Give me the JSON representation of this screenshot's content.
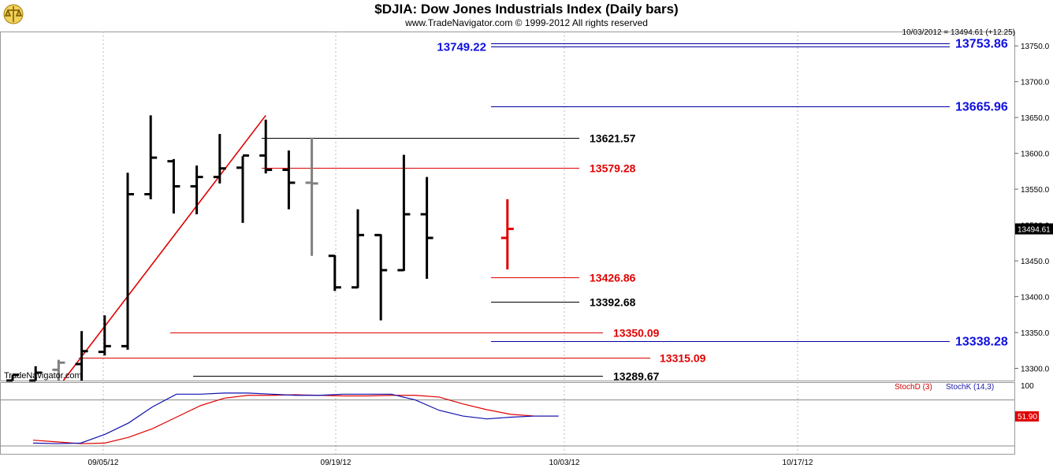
{
  "header": {
    "title": "$DJIA:  Dow Jones Industrials Index  (Daily bars)",
    "subtitle": "www.TradeNavigator.com © 1999-2012 All rights reserved",
    "quote": "10/03/2012 = 13494.61 (+12.25)",
    "brand": "TradeNavigator.com"
  },
  "colors": {
    "price_bar": "#000000",
    "prior_bar": "#808080",
    "current_bar": "#e00000",
    "support_red": "#e00000",
    "level_blue": "#0000a0",
    "level_black": "#000000",
    "stoch_d": "#e00000",
    "stoch_k": "#1010b0"
  },
  "chart_data": [
    {
      "type": "bar",
      "title": "$DJIA:  Dow Jones Industrials Index  (Daily bars)",
      "ylim": [
        13283,
        13770
      ],
      "y_ticks": [
        "13300.0",
        "13350.0",
        "13400.0",
        "13450.0",
        "13500.0",
        "13550.0",
        "13600.0",
        "13650.0",
        "13700.0",
        "13750.0"
      ],
      "x_ticks": [
        "09/05/12",
        "09/19/12",
        "10/03/12",
        "10/17/12"
      ],
      "current_price_label": "13494.61",
      "bars": [
        {
          "date": "08/31/12",
          "open": 13283,
          "high": 13291,
          "low": 13283,
          "close": 13291
        },
        {
          "date": "09/04/12",
          "open": 13283,
          "high": 13303,
          "low": 13283,
          "close": 13294
        },
        {
          "date": "09/05/12",
          "open": 13298,
          "high": 13312,
          "low": 13283,
          "close": 13308
        },
        {
          "date": "09/06/12",
          "open": 13306,
          "high": 13352,
          "low": 13283,
          "close": 13324
        },
        {
          "date": "09/07/12",
          "open": 13323,
          "high": 13374,
          "low": 13318,
          "close": 13331
        },
        {
          "date": "09/10/12",
          "open": 13331,
          "high": 13573,
          "low": 13326,
          "close": 13543
        },
        {
          "date": "09/11/12",
          "open": 13543,
          "high": 13653,
          "low": 13536,
          "close": 13594
        },
        {
          "date": "09/12/12",
          "open": 13589,
          "high": 13592,
          "low": 13516,
          "close": 13554
        },
        {
          "date": "09/13/12",
          "open": 13554,
          "high": 13583,
          "low": 13515,
          "close": 13567
        },
        {
          "date": "09/14/12",
          "open": 13567,
          "high": 13627,
          "low": 13558,
          "close": 13579
        },
        {
          "date": "09/17/12",
          "open": 13580,
          "high": 13596,
          "low": 13503,
          "close": 13597
        },
        {
          "date": "09/18/12",
          "open": 13597,
          "high": 13647,
          "low": 13572,
          "close": 13577
        },
        {
          "date": "09/19/12",
          "open": 13577,
          "high": 13604,
          "low": 13522,
          "close": 13559
        },
        {
          "date": "09/20/12",
          "open": 13559,
          "high": 13622,
          "low": 13457,
          "close": 13558
        },
        {
          "date": "09/21/12",
          "open": 13457,
          "high": 13458,
          "low": 13408,
          "close": 13413
        },
        {
          "date": "09/24/12",
          "open": 13413,
          "high": 13522,
          "low": 13412,
          "close": 13486
        },
        {
          "date": "09/25/12",
          "open": 13486,
          "high": 13487,
          "low": 13367,
          "close": 13437
        },
        {
          "date": "09/26/12",
          "open": 13437,
          "high": 13598,
          "low": 13436,
          "close": 13515
        },
        {
          "date": "09/27/12",
          "open": 13515,
          "high": 13567,
          "low": 13425,
          "close": 13482
        },
        {
          "date": "10/03/12",
          "open": 13482,
          "high": 13536,
          "low": 13438,
          "close": 13494.61
        }
      ],
      "levels": [
        {
          "label": "13753.86",
          "value": 13753.86,
          "color": "blue"
        },
        {
          "label": "13749.22",
          "value": 13749.22,
          "color": "blue"
        },
        {
          "label": "13665.96",
          "value": 13665.96,
          "color": "blue"
        },
        {
          "label": "13621.57",
          "value": 13621.57,
          "color": "black"
        },
        {
          "label": "13579.28",
          "value": 13579.28,
          "color": "red"
        },
        {
          "label": "13426.86",
          "value": 13426.86,
          "color": "red"
        },
        {
          "label": "13392.68",
          "value": 13392.68,
          "color": "black"
        },
        {
          "label": "13350.09",
          "value": 13350.09,
          "color": "red"
        },
        {
          "label": "13338.28",
          "value": 13338.28,
          "color": "blue"
        },
        {
          "label": "13315.09",
          "value": 13315.09,
          "color": "red"
        },
        {
          "label": "13289.67",
          "value": 13289.67,
          "color": "black"
        }
      ]
    },
    {
      "type": "line",
      "ylim": [
        0,
        100
      ],
      "y_ticks": [
        "100"
      ],
      "last_value_label": "51.90",
      "series": [
        {
          "name": "StochD (3)",
          "values": [
            10,
            7,
            4,
            5,
            15,
            30,
            50,
            70,
            83,
            88,
            88,
            89,
            88,
            87,
            87,
            88,
            88,
            85,
            73,
            63,
            55,
            52,
            52
          ]
        },
        {
          "name": "StochK (14,3)",
          "values": [
            5,
            4,
            5,
            20,
            40,
            68,
            90,
            90,
            92,
            92,
            90,
            88,
            88,
            90,
            90,
            90,
            80,
            62,
            52,
            47,
            50,
            52,
            52
          ]
        }
      ]
    }
  ]
}
